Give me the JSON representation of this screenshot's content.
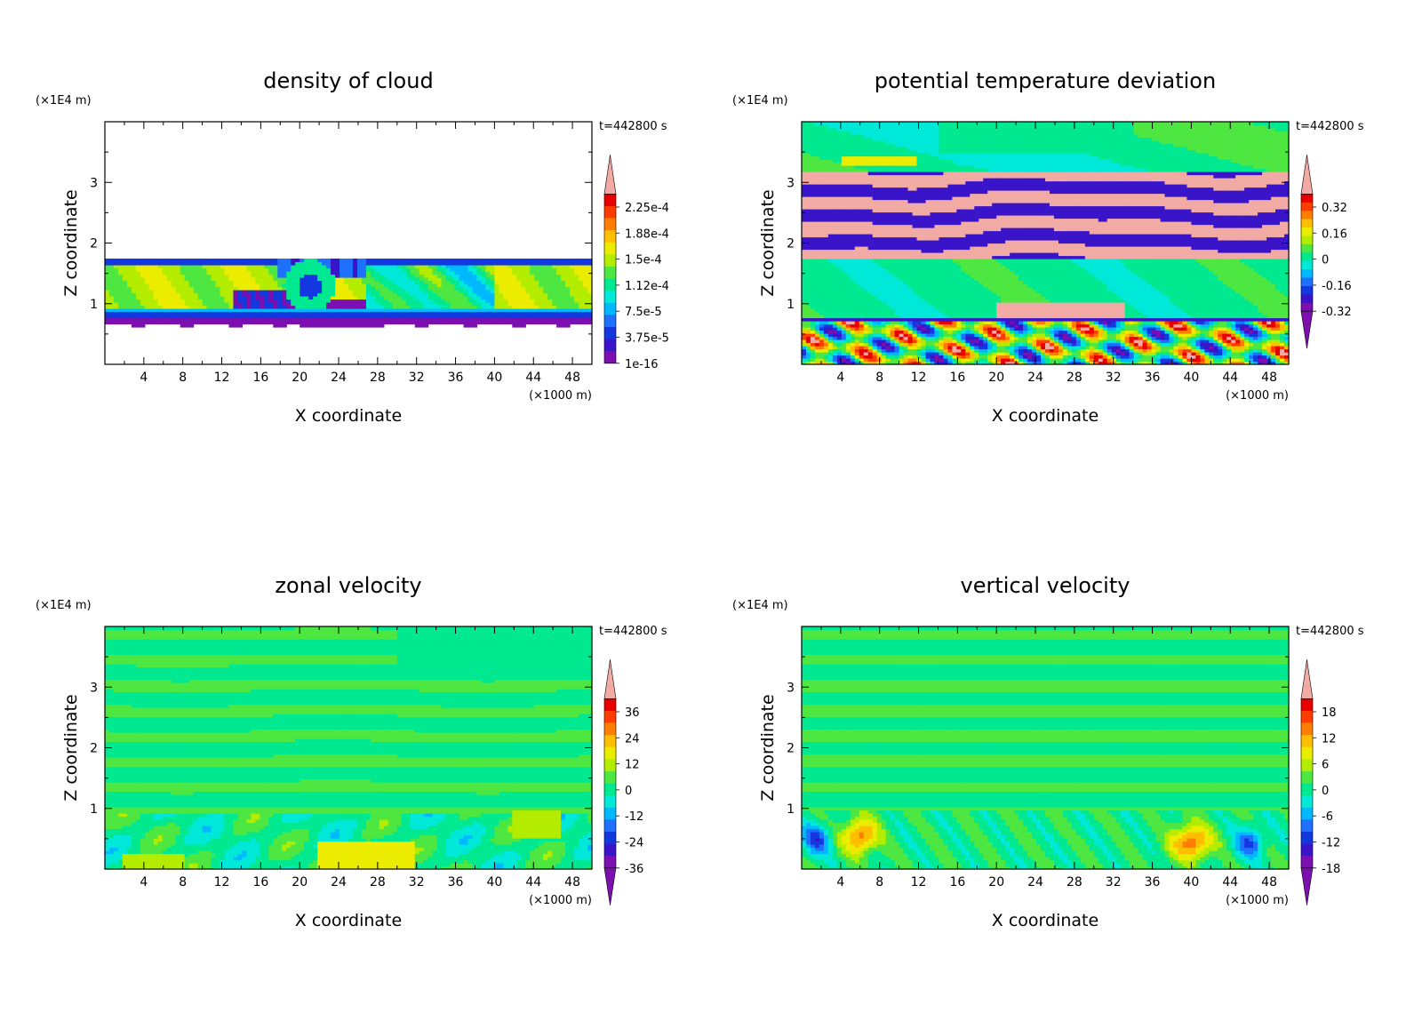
{
  "colors": {
    "palette": [
      "#7b0fb0",
      "#3a14c8",
      "#1438e0",
      "#1e70ff",
      "#00b8ff",
      "#00e8d8",
      "#00e890",
      "#4ee640",
      "#b4ec00",
      "#ecec00",
      "#ffbe00",
      "#ff7d00",
      "#ff3c00",
      "#e80000",
      "#f2aaa4"
    ],
    "white": "#ffffff",
    "frame": "#000000"
  },
  "chart_data": [
    {
      "type": "heatmap",
      "title": "density of cloud",
      "xlabel": "X coordinate",
      "ylabel": "Z coordinate",
      "x_unit": "(×1000 m)",
      "y_unit": "(×1E4 m)",
      "time_label": "t=442800 s",
      "xlim": [
        0,
        50
      ],
      "ylim": [
        0,
        4
      ],
      "xticks": [
        4,
        8,
        12,
        16,
        20,
        24,
        28,
        32,
        36,
        40,
        44,
        48
      ],
      "yticks": [
        1,
        2,
        3
      ],
      "colorbar": {
        "labels": [
          "2.25e-4",
          "1.88e-4",
          "1.5e-4",
          "1.12e-4",
          "7.5e-5",
          "3.75e-5",
          "1e-16"
        ],
        "extend": "max"
      },
      "field": "cloud"
    },
    {
      "type": "heatmap",
      "title": "potential temperature deviation",
      "xlabel": "X coordinate",
      "ylabel": "Z coordinate",
      "x_unit": "(×1000 m)",
      "y_unit": "(×1E4 m)",
      "time_label": "t=442800 s",
      "xlim": [
        0,
        50
      ],
      "ylim": [
        0,
        4
      ],
      "xticks": [
        4,
        8,
        12,
        16,
        20,
        24,
        28,
        32,
        36,
        40,
        44,
        48
      ],
      "yticks": [
        1,
        2,
        3
      ],
      "colorbar": {
        "labels": [
          "0.32",
          "0.16",
          "0",
          "-0.16",
          "-0.32"
        ],
        "extend": "both"
      },
      "field": "theta"
    },
    {
      "type": "heatmap",
      "title": "zonal velocity",
      "xlabel": "X coordinate",
      "ylabel": "Z coordinate",
      "x_unit": "(×1000 m)",
      "y_unit": "(×1E4 m)",
      "time_label": "t=442800 s",
      "xlim": [
        0,
        50
      ],
      "ylim": [
        0,
        4
      ],
      "xticks": [
        4,
        8,
        12,
        16,
        20,
        24,
        28,
        32,
        36,
        40,
        44,
        48
      ],
      "yticks": [
        1,
        2,
        3
      ],
      "colorbar": {
        "labels": [
          "36",
          "24",
          "12",
          "0",
          "-12",
          "-24",
          "-36"
        ],
        "extend": "both"
      },
      "field": "u"
    },
    {
      "type": "heatmap",
      "title": "vertical velocity",
      "xlabel": "X coordinate",
      "ylabel": "Z coordinate",
      "x_unit": "(×1000 m)",
      "y_unit": "(×1E4 m)",
      "time_label": "t=442800 s",
      "xlim": [
        0,
        50
      ],
      "ylim": [
        0,
        4
      ],
      "xticks": [
        4,
        8,
        12,
        16,
        20,
        24,
        28,
        32,
        36,
        40,
        44,
        48
      ],
      "yticks": [
        1,
        2,
        3
      ],
      "colorbar": {
        "labels": [
          "18",
          "12",
          "6",
          "0",
          "-6",
          "-12",
          "-18"
        ],
        "extend": "both"
      },
      "field": "w"
    }
  ]
}
